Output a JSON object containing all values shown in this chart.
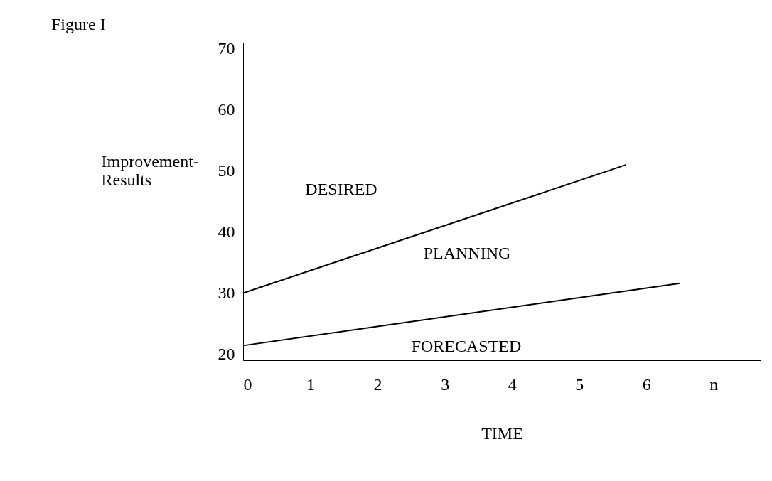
{
  "chart_data": {
    "type": "line",
    "title": "Figure I",
    "xlabel": "TIME",
    "ylabel": "Improvement-Results",
    "xlim": [
      0,
      7.7
    ],
    "xticks": [
      0,
      1,
      2,
      3,
      4,
      5,
      6,
      {
        "value": 7,
        "label": "n"
      }
    ],
    "ylim": [
      19,
      71
    ],
    "yticks": [
      20,
      30,
      40,
      50,
      60,
      70
    ],
    "grid": false,
    "marker": "none",
    "series": [
      {
        "color": "#000000",
        "x": [
          0,
          5.7
        ],
        "values": [
          30,
          51
        ]
      },
      {
        "color": "#000000",
        "x": [
          0,
          6.5
        ],
        "values": [
          21.4,
          31.6
        ]
      }
    ],
    "annotations": [
      "DESIRED",
      "PLANNING",
      "FORECASTED"
    ]
  }
}
